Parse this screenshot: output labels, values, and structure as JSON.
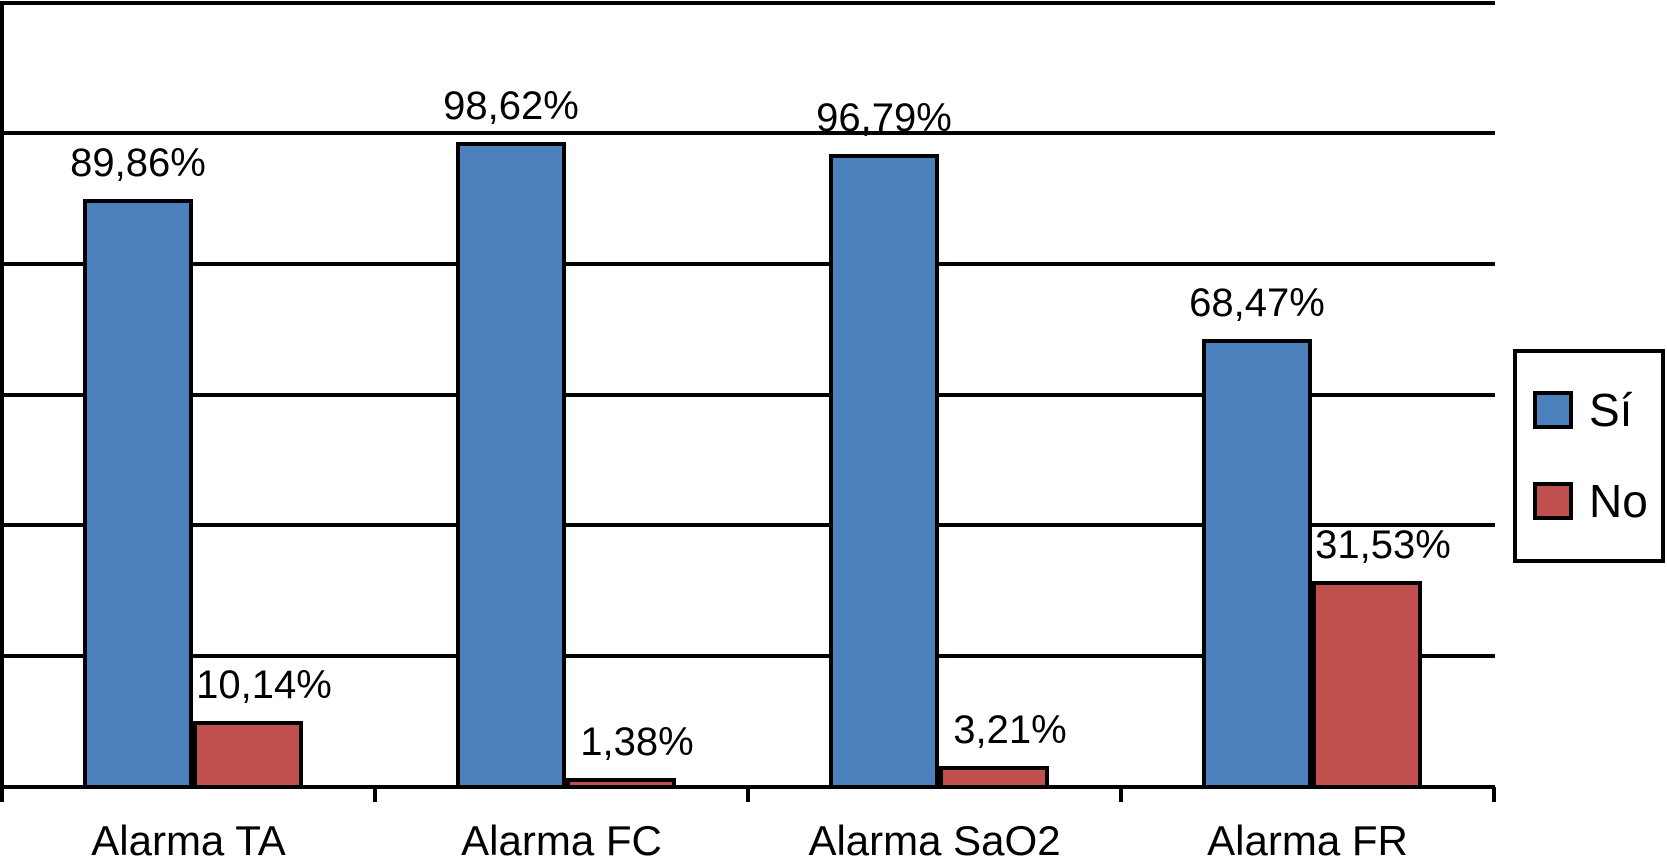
{
  "chart_data": {
    "type": "bar",
    "title": "",
    "xlabel": "",
    "ylabel": "",
    "categories": [
      "Alarma TA",
      "Alarma FC",
      "Alarma SaO2",
      "Alarma FR"
    ],
    "series": [
      {
        "name": "Sí",
        "color": "#4D81BE",
        "values": [
          89.86,
          98.62,
          96.79,
          68.47
        ],
        "labels": [
          "89,86%",
          "98,62%",
          "96,79%",
          "68,47%"
        ]
      },
      {
        "name": "No",
        "color": "#C0504D",
        "values": [
          10.14,
          1.38,
          3.21,
          31.53
        ],
        "labels": [
          "10,14%",
          "1,38%",
          "3,21%",
          "31,53%"
        ]
      }
    ],
    "ylim": [
      0,
      120
    ],
    "gridline_step": 20,
    "grid": true,
    "y_tick_labels_visible": false,
    "legend_position": "right",
    "line_color": "#000000",
    "background_color": "#ffffff"
  },
  "legend": {
    "items": [
      {
        "label": "Sí",
        "color": "#4D81BE"
      },
      {
        "label": "No",
        "color": "#C0504D"
      }
    ]
  }
}
